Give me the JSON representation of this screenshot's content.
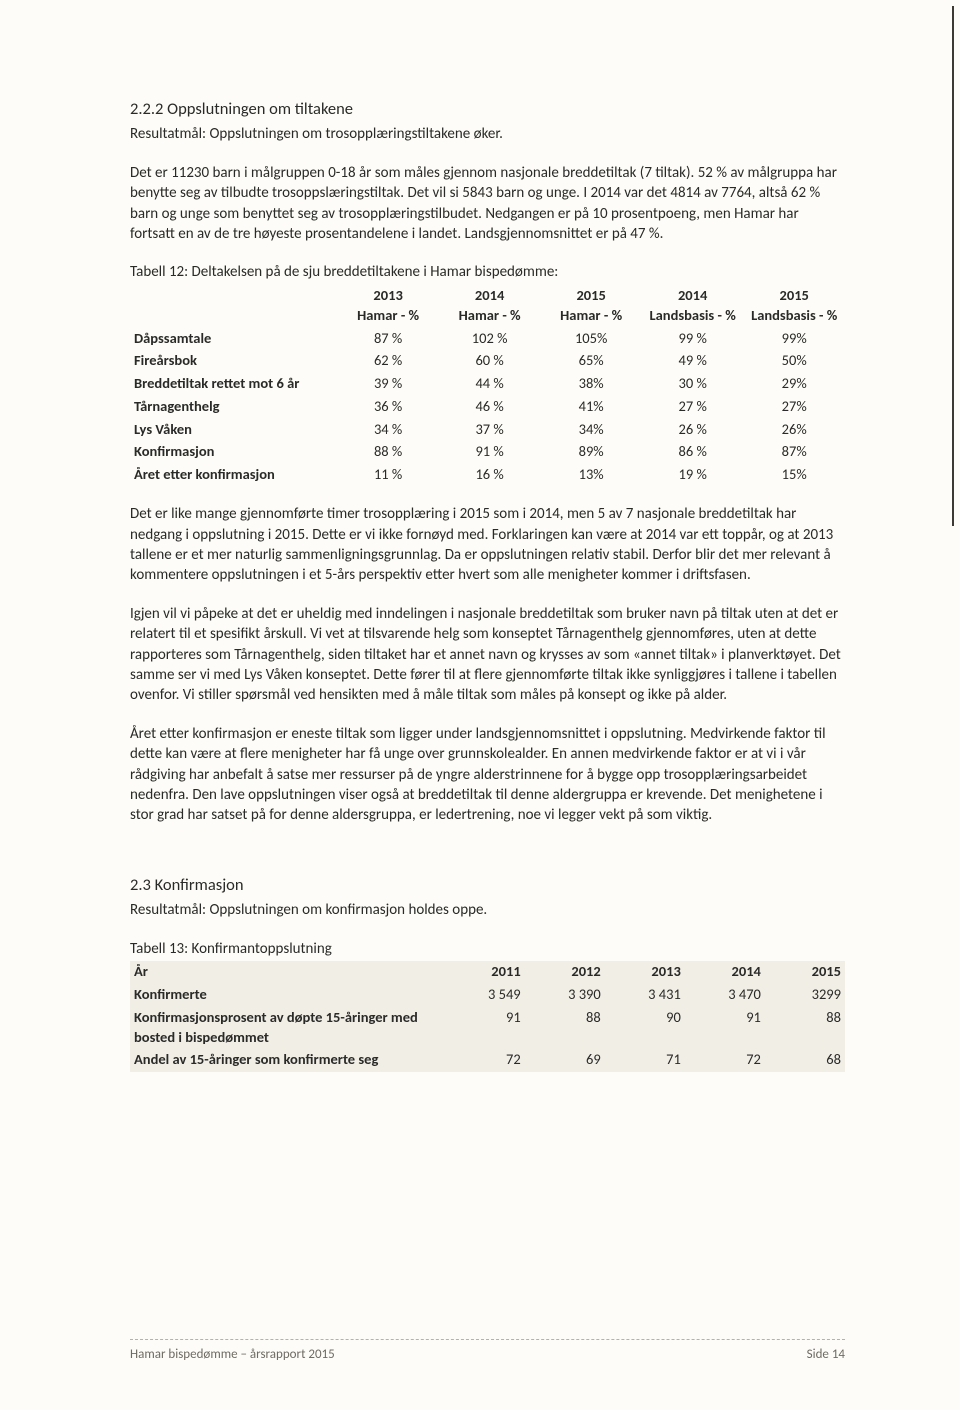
{
  "colors": {
    "page_bg": "#fdfcf8",
    "text": "#2a2a28",
    "footer_text": "#6e6b62",
    "t13_header_bg": "#f1eee6",
    "footer_rule": "#b6b2a7"
  },
  "section222": {
    "heading": "2.2.2 Oppslutningen om tiltakene",
    "result": "Resultatmål: Oppslutningen om trosopplæringstiltakene øker.",
    "para1": "Det er 11230 barn i målgruppen 0-18 år som måles gjennom nasjonale breddetiltak (7 tiltak). 52 % av målgruppa har benytte seg av tilbudte trosoppslæringstiltak. Det vil si 5843 barn og unge. I 2014 var det 4814 av 7764, altså 62 % barn og unge som benyttet seg av trosopplæringstilbudet. Nedgangen er på 10 prosentpoeng, men Hamar har fortsatt en av de tre høyeste prosentandelene i landet. Landsgjennomsnittet er på 47 %.",
    "table12_caption": "Tabell 12: Deltakelsen på de sju breddetiltakene i Hamar bispedømme:",
    "table12": {
      "columns": [
        "",
        [
          "2013",
          "Hamar - %"
        ],
        [
          "2014",
          "Hamar - %"
        ],
        [
          "2015",
          "Hamar - %"
        ],
        [
          "2014",
          "Landsbasis - %"
        ],
        [
          "2015",
          "Landsbasis - %"
        ]
      ],
      "rows": [
        [
          "Dåpssamtale",
          "87 %",
          "102 %",
          "105%",
          "99 %",
          "99%"
        ],
        [
          "Fireårsbok",
          "62 %",
          "60 %",
          "65%",
          "49 %",
          "50%"
        ],
        [
          "Breddetiltak rettet mot 6 år",
          "39 %",
          "44 %",
          "38%",
          "30 %",
          "29%"
        ],
        [
          "Tårnagenthelg",
          "36 %",
          "46 %",
          "41%",
          "27 %",
          "27%"
        ],
        [
          "Lys Våken",
          "34 %",
          "37 %",
          "34%",
          "26 %",
          "26%"
        ],
        [
          "Konfirmasjon",
          "88 %",
          "91 %",
          "89%",
          "86 %",
          "87%"
        ],
        [
          "Året etter konfirmasjon",
          "11 %",
          "16 %",
          "13%",
          "19 %",
          "15%"
        ]
      ]
    },
    "para2": "Det er like mange gjennomførte timer trosopplæring i 2015 som i 2014, men 5 av 7 nasjonale breddetiltak har nedgang i oppslutning i 2015. Dette er vi ikke fornøyd med. Forklaringen kan være at 2014 var ett toppår, og at 2013 tallene er et mer naturlig sammenligningsgrunnlag. Da er oppslutningen relativ stabil. Derfor blir det mer relevant å kommentere oppslutningen i et 5-års perspektiv etter hvert som alle menigheter kommer i driftsfasen.",
    "para3": "Igjen vil vi påpeke at det er uheldig med inndelingen i nasjonale breddetiltak som bruker navn på tiltak uten at det er relatert til et spesifikt årskull. Vi vet at tilsvarende helg som konseptet Tårnagenthelg gjennomføres, uten at dette rapporteres som Tårnagenthelg, siden tiltaket har et annet navn og krysses av som «annet tiltak» i planverktøyet. Det samme ser vi med Lys Våken konseptet. Dette fører til at flere gjennomførte tiltak ikke synliggjøres i tallene i tabellen ovenfor. Vi stiller spørsmål ved hensikten med å måle tiltak som måles på konsept og ikke på alder.",
    "para4": "Året etter konfirmasjon er eneste tiltak som ligger under landsgjennomsnittet i oppslutning. Medvirkende faktor til dette kan være at flere menigheter har få unge over grunnskolealder. En annen medvirkende faktor er at vi i vår rådgiving har anbefalt å satse mer ressurser på de yngre alderstrinnene for å bygge opp trosopplæringsarbeidet nedenfra. Den lave oppslutningen viser også at breddetiltak til denne aldergruppa er krevende. Det menighetene i stor grad har satset på for denne aldersgruppa, er ledertrening, noe vi legger vekt på som viktig."
  },
  "section23": {
    "heading": "2.3 Konfirmasjon",
    "result": "Resultatmål: Oppslutningen om konfirmasjon holdes oppe.",
    "table13_caption": "Tabell 13: Konfirmantoppslutning",
    "table13": {
      "columns": [
        "År",
        "2011",
        "2012",
        "2013",
        "2014",
        "2015"
      ],
      "rows": [
        [
          "Konfirmerte",
          "3 549",
          "3 390",
          "3 431",
          "3 470",
          "3299"
        ],
        [
          "Konfirmasjonsprosent av døpte 15-åringer med bosted i bispedømmet",
          "91",
          "88",
          "90",
          "91",
          "88"
        ],
        [
          "Andel av 15-åringer som konfirmerte seg",
          "72",
          "69",
          "71",
          "72",
          "68"
        ]
      ]
    }
  },
  "footer": {
    "left": "Hamar bispedømme – årsrapport 2015",
    "right": "Side 14"
  }
}
